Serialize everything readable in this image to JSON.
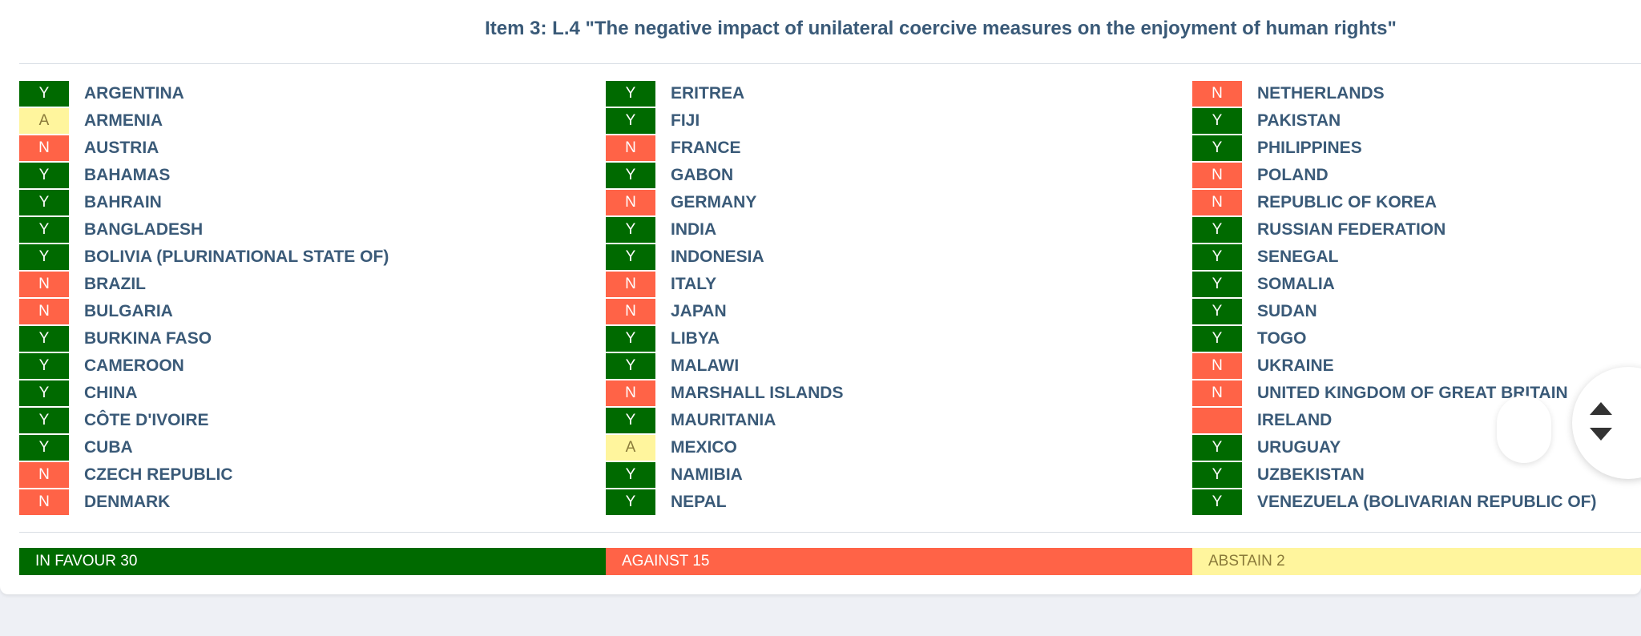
{
  "title": "Item 3: L.4 \"The negative impact of unilateral coercive measures on the enjoyment of human rights\"",
  "columns": [
    [
      {
        "vote": "Y",
        "country": "ARGENTINA"
      },
      {
        "vote": "A",
        "country": "ARMENIA"
      },
      {
        "vote": "N",
        "country": "AUSTRIA"
      },
      {
        "vote": "Y",
        "country": "BAHAMAS"
      },
      {
        "vote": "Y",
        "country": "BAHRAIN"
      },
      {
        "vote": "Y",
        "country": "BANGLADESH"
      },
      {
        "vote": "Y",
        "country": "BOLIVIA (PLURINATIONAL STATE OF)"
      },
      {
        "vote": "N",
        "country": "BRAZIL"
      },
      {
        "vote": "N",
        "country": "BULGARIA"
      },
      {
        "vote": "Y",
        "country": "BURKINA FASO"
      },
      {
        "vote": "Y",
        "country": "CAMEROON"
      },
      {
        "vote": "Y",
        "country": "CHINA"
      },
      {
        "vote": "Y",
        "country": "CÔTE D'IVOIRE"
      },
      {
        "vote": "Y",
        "country": "CUBA"
      },
      {
        "vote": "N",
        "country": "CZECH REPUBLIC"
      },
      {
        "vote": "N",
        "country": "DENMARK"
      }
    ],
    [
      {
        "vote": "Y",
        "country": "ERITREA"
      },
      {
        "vote": "Y",
        "country": "FIJI"
      },
      {
        "vote": "N",
        "country": "FRANCE"
      },
      {
        "vote": "Y",
        "country": "GABON"
      },
      {
        "vote": "N",
        "country": "GERMANY"
      },
      {
        "vote": "Y",
        "country": "INDIA"
      },
      {
        "vote": "Y",
        "country": "INDONESIA"
      },
      {
        "vote": "N",
        "country": "ITALY"
      },
      {
        "vote": "N",
        "country": "JAPAN"
      },
      {
        "vote": "Y",
        "country": "LIBYA"
      },
      {
        "vote": "Y",
        "country": "MALAWI"
      },
      {
        "vote": "N",
        "country": "MARSHALL ISLANDS"
      },
      {
        "vote": "Y",
        "country": "MAURITANIA"
      },
      {
        "vote": "A",
        "country": "MEXICO"
      },
      {
        "vote": "Y",
        "country": "NAMIBIA"
      },
      {
        "vote": "Y",
        "country": "NEPAL"
      }
    ],
    [
      {
        "vote": "N",
        "country": "NETHERLANDS"
      },
      {
        "vote": "Y",
        "country": "PAKISTAN"
      },
      {
        "vote": "Y",
        "country": "PHILIPPINES"
      },
      {
        "vote": "N",
        "country": "POLAND"
      },
      {
        "vote": "N",
        "country": "REPUBLIC OF KOREA"
      },
      {
        "vote": "Y",
        "country": "RUSSIAN FEDERATION"
      },
      {
        "vote": "Y",
        "country": "SENEGAL"
      },
      {
        "vote": "Y",
        "country": "SOMALIA"
      },
      {
        "vote": "Y",
        "country": "SUDAN"
      },
      {
        "vote": "Y",
        "country": "TOGO"
      },
      {
        "vote": "N",
        "country": "UKRAINE"
      },
      {
        "vote": "N",
        "country": "UNITED KINGDOM OF GREAT BRITAIN"
      },
      {
        "vote": "",
        "country": "IRELAND"
      },
      {
        "vote": "Y",
        "country": "URUGUAY"
      },
      {
        "vote": "Y",
        "country": "UZBEKISTAN"
      },
      {
        "vote": "Y",
        "country": "VENEZUELA (BOLIVARIAN REPUBLIC OF)"
      }
    ]
  ],
  "tally": {
    "in_favour": "IN FAVOUR 30",
    "against": "AGAINST 15",
    "abstain": "ABSTAIN 2"
  },
  "colors": {
    "yes": "#006a00",
    "no": "#ff6347",
    "abstain": "#fff59d",
    "title": "#3a5a78"
  },
  "icons": {
    "scroll_up": "arrow-up-icon",
    "scroll_down": "arrow-down-icon"
  }
}
